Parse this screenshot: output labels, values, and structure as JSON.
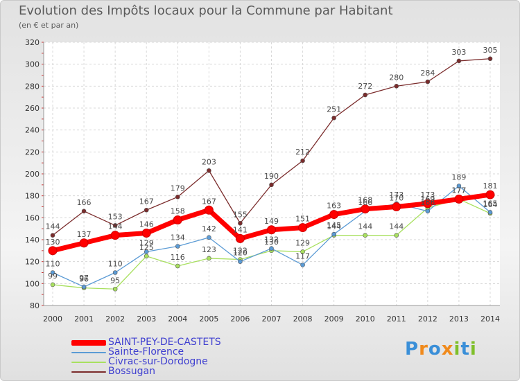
{
  "title": "Evolution des Impôts locaux pour la Commune par Habitant",
  "subtitle": "(en € et par an)",
  "logo": {
    "text": "Proxiti",
    "letters": [
      "P",
      "r",
      "o",
      "x",
      "i",
      "t",
      "i"
    ],
    "colors": [
      "#3a8fd8",
      "#f08a1c",
      "#3a8fd8",
      "#f08a1c",
      "#7fbf2a",
      "#3a8fd8",
      "#7fbf2a"
    ]
  },
  "chart_data": {
    "type": "line",
    "title": "Evolution des Impôts locaux pour la Commune par Habitant",
    "subtitle": "(en € et par an)",
    "xlabel": "",
    "ylabel": "",
    "ylim": [
      80,
      320
    ],
    "yticks": [
      80,
      100,
      120,
      140,
      160,
      180,
      200,
      220,
      240,
      260,
      280,
      300,
      320
    ],
    "grid": true,
    "legend_position": "bottom-left",
    "x": [
      "2000",
      "2001",
      "2002",
      "2003",
      "2004",
      "2005",
      "2006",
      "2007",
      "2008",
      "2009",
      "2010",
      "2011",
      "2012",
      "2013",
      "2014"
    ],
    "series": [
      {
        "name": "SAINT-PEY-DE-CASTETS",
        "color": "#ff0000",
        "values": [
          130,
          137,
          144,
          146,
          158,
          167,
          141,
          149,
          151,
          163,
          168,
          170,
          173,
          177,
          181
        ],
        "labels": [
          "130",
          "137",
          "144",
          "146",
          "158",
          "167",
          "141",
          "149",
          "151",
          "163",
          "168",
          "170",
          "173",
          "177",
          "181"
        ]
      },
      {
        "name": "Sainte-Florence",
        "color": "#5b9bd5",
        "values": [
          110,
          97,
          110,
          129,
          134,
          142,
          120,
          132,
          117,
          145,
          166,
          173,
          166,
          189,
          165
        ],
        "labels": [
          "110",
          "97",
          "110",
          "129",
          "134",
          "142",
          "120",
          "132",
          "117",
          "145",
          "166",
          "173",
          "166",
          "189",
          "165"
        ]
      },
      {
        "name": "Civrac-sur-Dordogne",
        "color": "#a8e05f",
        "values": [
          99,
          96,
          95,
          125,
          116,
          123,
          122,
          130,
          129,
          144,
          144,
          144,
          169,
          177,
          164
        ],
        "labels": [
          "99",
          "96",
          "95",
          "125",
          "116",
          "123",
          "122",
          "130",
          "129",
          "144",
          "144",
          "144",
          "169",
          "177",
          "164"
        ]
      },
      {
        "name": "Bossugan",
        "color": "#7b2c2c",
        "values": [
          144,
          166,
          153,
          167,
          179,
          203,
          155,
          190,
          212,
          251,
          272,
          280,
          284,
          303,
          305
        ],
        "labels": [
          "144",
          "166",
          "153",
          "167",
          "179",
          "203",
          "155",
          "190",
          "212",
          "251",
          "272",
          "280",
          "284",
          "303",
          "305"
        ]
      }
    ]
  }
}
